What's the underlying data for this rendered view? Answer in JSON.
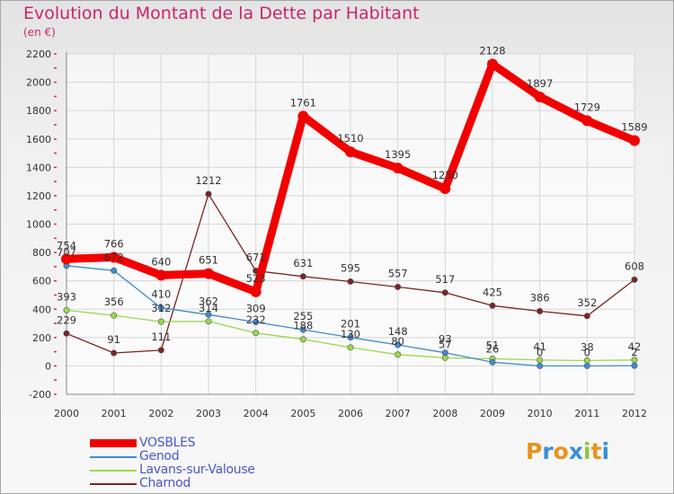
{
  "title": "Evolution du Montant de la Dette par Habitant",
  "subtitle": "(en €)",
  "logo": {
    "text": "Proxiti",
    "colors": [
      "#e8931b",
      "#3a8fd6",
      "#e8931b",
      "#3a8fd6",
      "#8cc63f",
      "#e8931b",
      "#3a8fd6"
    ]
  },
  "chart_data": {
    "type": "line",
    "title": "Evolution du Montant de la Dette par Habitant",
    "subtitle": "(en €)",
    "x": [
      "2000",
      "2001",
      "2002",
      "2003",
      "2004",
      "2005",
      "2006",
      "2007",
      "2008",
      "2009",
      "2010",
      "2011",
      "2012"
    ],
    "ylim": [
      -200,
      2200
    ],
    "yticks": [
      -200,
      0,
      200,
      400,
      600,
      800,
      1000,
      1200,
      1400,
      1600,
      1800,
      2000,
      2200
    ],
    "grid": true,
    "legend_position": "bottom-left",
    "series": [
      {
        "name": "Charnod",
        "color": "#7a2424",
        "values": [
          229,
          91,
          111,
          1212,
          671,
          631,
          595,
          557,
          517,
          425,
          386,
          352,
          608
        ]
      },
      {
        "name": "Lavans-sur-Valouse",
        "color": "#9ad84e",
        "values": [
          393,
          356,
          312,
          314,
          232,
          188,
          130,
          80,
          57,
          51,
          41,
          38,
          42
        ]
      },
      {
        "name": "Genod",
        "color": "#3d8bd0",
        "values": [
          707,
          672,
          410,
          362,
          309,
          255,
          201,
          148,
          93,
          26,
          0,
          0,
          2
        ]
      },
      {
        "name": "VOSBLES",
        "color": "#f20000",
        "values": [
          754,
          766,
          640,
          651,
          523,
          1761,
          1510,
          1395,
          1250,
          2128,
          1897,
          1729,
          1589
        ]
      }
    ],
    "labels": {
      "Charnod": [
        "229",
        "91",
        "111",
        "1212",
        "671",
        "631",
        "595",
        "557",
        "517",
        "425",
        "386",
        "352",
        "608"
      ],
      "Lavans-sur-Valouse": [
        "393",
        "356",
        "312",
        "314",
        "232",
        "188",
        "130",
        "80",
        "57",
        "51",
        "41",
        "38",
        "42"
      ],
      "Genod": [
        "707",
        "672",
        "410",
        "362",
        "309",
        "255",
        "201",
        "148",
        "93",
        "26",
        "0",
        "0",
        "2"
      ],
      "VOSBLES": [
        "754",
        "766",
        "640",
        "651",
        "523",
        "1761",
        "1510",
        "1395",
        "1250",
        "2128",
        "1897",
        "1729",
        "1589"
      ]
    }
  },
  "legend": [
    {
      "name": "VOSBLES",
      "color": "#f20000"
    },
    {
      "name": "Genod",
      "color": "#3d8bd0"
    },
    {
      "name": "Lavans-sur-Valouse",
      "color": "#9ad84e"
    },
    {
      "name": "Charnod",
      "color": "#7a2424"
    }
  ]
}
